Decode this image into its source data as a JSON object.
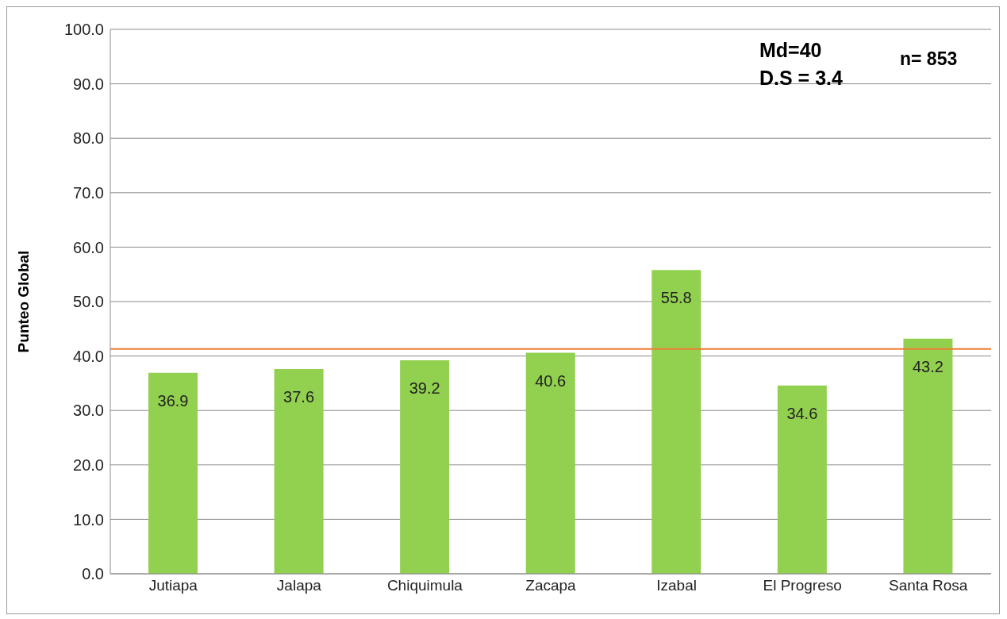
{
  "chart_data": {
    "type": "bar",
    "ylabel": "Punteo Global",
    "categories": [
      "Jutiapa",
      "Jalapa",
      "Chiquimula",
      "Zacapa",
      "Izabal",
      "El Progreso",
      "Santa Rosa"
    ],
    "values": [
      36.9,
      37.6,
      39.2,
      40.6,
      55.8,
      34.6,
      43.2
    ],
    "color": "#92d050",
    "data_labels": true,
    "ylim": [
      0,
      100
    ],
    "yticks": [
      {
        "value": 0,
        "label": "0.0"
      },
      {
        "value": 10,
        "label": "10.0"
      },
      {
        "value": 20,
        "label": "20.0"
      },
      {
        "value": 30,
        "label": "30.0"
      },
      {
        "value": 40,
        "label": "40.0"
      },
      {
        "value": 50,
        "label": "50.0"
      },
      {
        "value": 60,
        "label": "60.0"
      },
      {
        "value": 70,
        "label": "70.0"
      },
      {
        "value": 80,
        "label": "80.0"
      },
      {
        "value": 90,
        "label": "90.0"
      },
      {
        "value": 100,
        "label": "100.0"
      }
    ],
    "grid": "y",
    "ref_lines": [
      {
        "axis": "y",
        "value": 41.3,
        "color": "#ed7d31"
      }
    ],
    "annotations": [
      "Md=40",
      "D.S = 3.4",
      "n= 853"
    ]
  }
}
